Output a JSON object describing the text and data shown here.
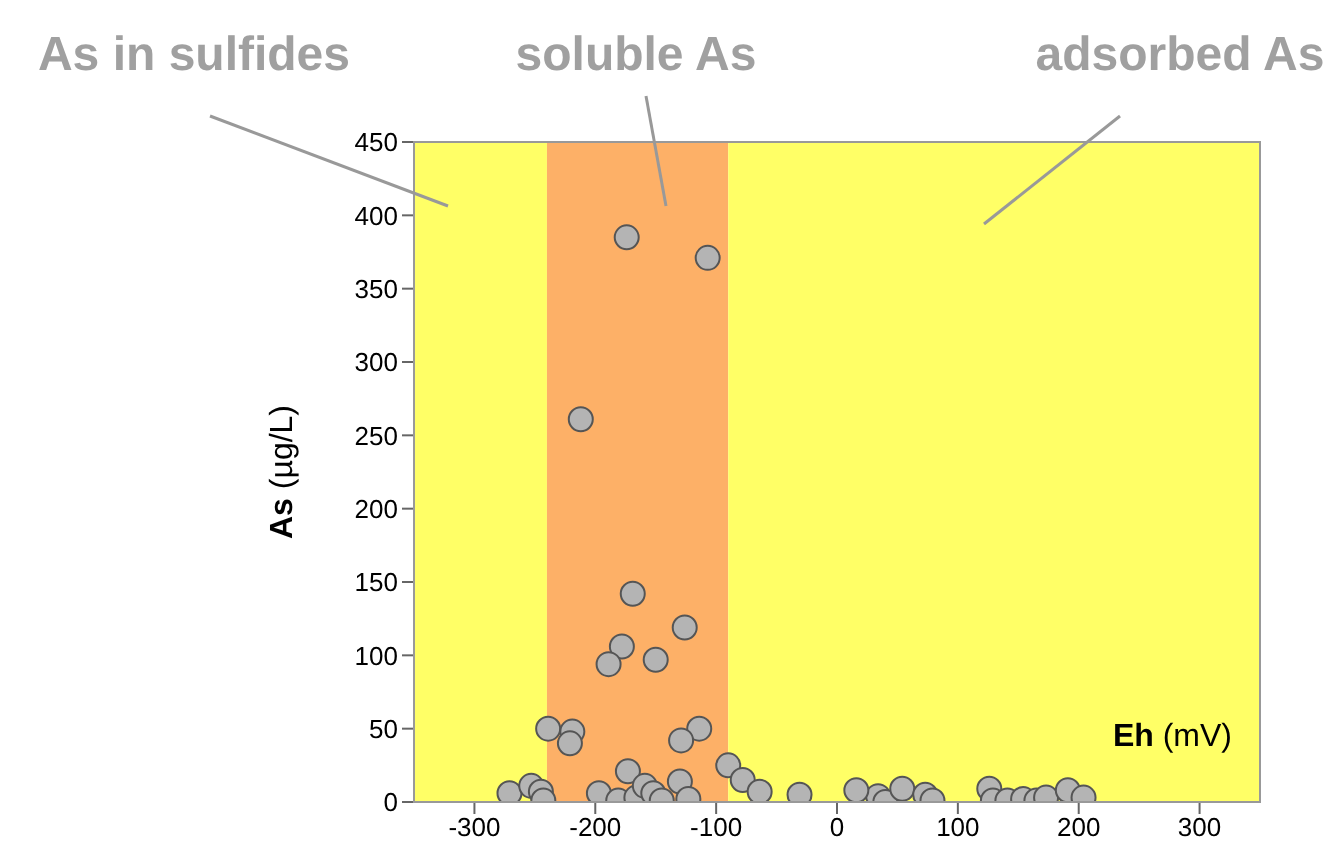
{
  "chart_data": {
    "type": "scatter",
    "xlabel": "Eh (mV)",
    "ylabel": "As (µg/L)",
    "x": [
      -174,
      -107,
      -212,
      -169,
      -126,
      -178,
      -189,
      -150,
      -239,
      -219,
      -221,
      -114,
      -129,
      -173,
      -90,
      -78,
      -64,
      -271,
      -253,
      -245,
      -243,
      -197,
      -181,
      -166,
      -159,
      -152,
      -145,
      -130,
      -123,
      -31,
      34,
      16,
      40,
      54,
      73,
      79,
      126,
      129,
      141,
      154,
      165,
      173,
      191,
      204
    ],
    "values": [
      385,
      371,
      261,
      142,
      119,
      106,
      94,
      97,
      50,
      48,
      40,
      50,
      42,
      21,
      25,
      15,
      7,
      6,
      11,
      7,
      1,
      6,
      1,
      3,
      11,
      6,
      1,
      14,
      2,
      5,
      4,
      8,
      0,
      9,
      5,
      1,
      9,
      1,
      1,
      2,
      1,
      3,
      8,
      3
    ],
    "color": "#b4b4b4",
    "marker": "circle",
    "grid": false,
    "legend": false,
    "xlim": [
      -350,
      350
    ],
    "xticks": [
      -300,
      -200,
      -100,
      0,
      100,
      200,
      300
    ],
    "ylim": [
      0,
      450
    ],
    "yticks": [
      0,
      50,
      100,
      150,
      200,
      250,
      300,
      350,
      400,
      450
    ],
    "bands": [
      {
        "axis": "x",
        "from": -350,
        "to": -240,
        "label": "As in sulfides",
        "color": "#ffff66"
      },
      {
        "axis": "x",
        "from": -240,
        "to": -90,
        "label": "soluble As",
        "color": "#fdb067"
      },
      {
        "axis": "x",
        "from": -90,
        "to": 350,
        "label": "adsorbed As",
        "color": "#ffff66"
      }
    ]
  }
}
